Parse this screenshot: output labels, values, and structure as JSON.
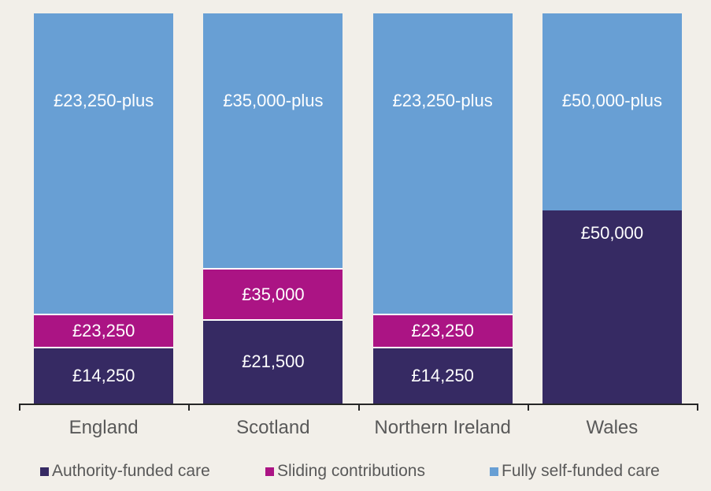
{
  "chart_data": {
    "type": "bar",
    "stacked": true,
    "title": "",
    "xlabel": "",
    "ylabel": "",
    "categories": [
      "England",
      "Scotland",
      "Northern Ireland",
      "Wales"
    ],
    "series": [
      {
        "name": "Authority-funded care",
        "color": "#362a63",
        "values": [
          14250,
          21500,
          14250,
          50000
        ],
        "bar_labels": [
          "£14,250",
          "£21,500",
          "£14,250",
          "£50,000"
        ]
      },
      {
        "name": "Sliding contributions",
        "color": "#ab1484",
        "values": [
          9000,
          13500,
          9000,
          0
        ],
        "bar_labels": [
          "£23,250",
          "£35,000",
          "£23,250",
          ""
        ]
      },
      {
        "name": "Fully self-funded care",
        "color": "#689fd4",
        "values": [
          77750,
          66000,
          77750,
          51000
        ],
        "bar_labels": [
          "£23,250-plus",
          "£35,000-plus",
          "£23,250-plus",
          "£50,000-plus"
        ]
      }
    ],
    "ylim": [
      0,
      101000
    ],
    "grid": false,
    "axis_visible": "x-only",
    "legend_position": "bottom"
  },
  "legend": {
    "items": [
      {
        "label": "Authority-funded care",
        "color": "#362a63"
      },
      {
        "label": "Sliding contributions",
        "color": "#ab1484"
      },
      {
        "label": "Fully self-funded care",
        "color": "#689fd4"
      }
    ]
  },
  "colors": {
    "background": "#f2efe9",
    "axis_line": "#262626",
    "category_label": "#595959",
    "bar_label": "#ffffff",
    "separator": "#ffffff"
  }
}
